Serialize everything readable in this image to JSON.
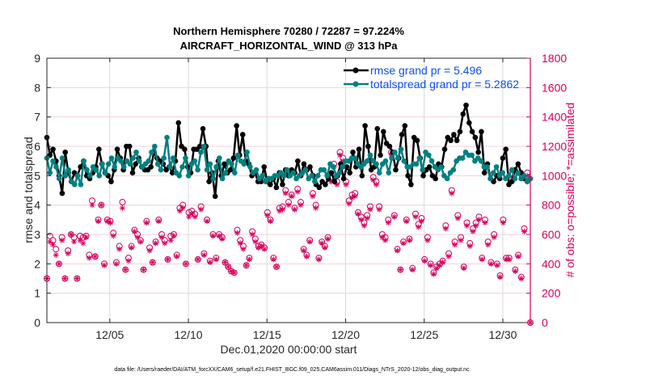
{
  "chart_data": {
    "type": "line",
    "title": "Northern Hemisphere 70280 / 72287 = 97.224%",
    "subtitle": "AIRCRAFT_HORIZONTAL_WIND @ 313 hPa",
    "xlabel": "Dec.01,2020 00:00:00 start",
    "ylabel": "rmse and totalspread",
    "y2label": "# of obs: o=possible; *=assimilated",
    "footnote": "data file: /Users/raeder/DAI/ATM_forcXX/CAM6_setup/f.e21.FHIST_BGC.f09_025.CAM6assim.011/Diags_NTrS_2020-12/obs_diag_output.nc",
    "xlim": [
      1.0,
      31.75
    ],
    "ylim": [
      0,
      9
    ],
    "y2lim": [
      0,
      1800
    ],
    "x_ticks": [
      {
        "value": 5,
        "label": "12/05"
      },
      {
        "value": 10,
        "label": "12/10"
      },
      {
        "value": 15,
        "label": "12/15"
      },
      {
        "value": 20,
        "label": "12/20"
      },
      {
        "value": 25,
        "label": "12/25"
      },
      {
        "value": 30,
        "label": "12/30"
      }
    ],
    "y_ticks": [
      0,
      1,
      2,
      3,
      4,
      5,
      6,
      7,
      8,
      9
    ],
    "y2_ticks": [
      0,
      200,
      400,
      600,
      800,
      1000,
      1200,
      1400,
      1600,
      1800
    ],
    "grid": true,
    "legend": {
      "placement": "top-right",
      "entries": [
        {
          "label": "rmse grand pr = 5.496",
          "color": "#000000"
        },
        {
          "label": "totalspread grand pr = 5.2862",
          "color": "#00807f"
        }
      ]
    },
    "x_start": 1.0,
    "x_step": 0.25,
    "series": [
      {
        "name": "rmse",
        "color": "#000000",
        "axis": "left",
        "values": [
          6.3,
          5.7,
          5.9,
          5.5,
          5.0,
          4.4,
          5.8,
          5.1,
          4.8,
          5.1,
          5.0,
          5.3,
          5.5,
          5.0,
          4.9,
          5.1,
          5.3,
          5.9,
          5.4,
          5.1,
          5.0,
          4.8,
          5.2,
          5.9,
          5.6,
          5.2,
          6.0,
          6.0,
          5.1,
          5.4,
          5.6,
          5.3,
          5.2,
          5.2,
          5.3,
          5.8,
          5.6,
          5.5,
          5.4,
          5.2,
          5.3,
          5.1,
          5.5,
          6.8,
          6.0,
          5.9,
          5.3,
          5.1,
          5.9,
          5.9,
          6.0,
          6.6,
          6.0,
          4.8,
          5.1,
          4.3,
          5.5,
          5.0,
          5.4,
          5.1,
          5.2,
          5.6,
          6.7,
          5.7,
          6.4,
          5.5,
          5.4,
          5.0,
          5.1,
          4.8,
          4.8,
          5.3,
          4.8,
          4.7,
          4.9,
          4.6,
          5.1,
          4.7,
          5.2,
          5.0,
          5.2,
          5.1,
          5.5,
          5.0,
          5.4,
          5.2,
          5.3,
          5.0,
          4.7,
          4.6,
          4.8,
          4.7,
          4.9,
          5.1,
          4.8,
          5.0,
          5.4,
          4.9,
          5.3,
          5.1,
          5.8,
          5.3,
          5.9,
          5.0,
          6.7,
          6.0,
          5.2,
          5.3,
          6.6,
          5.7,
          6.5,
          6.1,
          6.0,
          5.8,
          5.2,
          5.6,
          6.4,
          6.7,
          5.0,
          4.7,
          6.3,
          6.2,
          5.6,
          5.0,
          5.2,
          5.3,
          5.0,
          4.9,
          5.4,
          5.3,
          5.9,
          6.3,
          6.2,
          6.4,
          6.2,
          6.5,
          7.1,
          7.4,
          6.8,
          6.5,
          6.3,
          5.8,
          6.5,
          5.1,
          5.4,
          4.9,
          4.8,
          5.0,
          4.9,
          5.6,
          5.9,
          4.7,
          4.8,
          5.2,
          5.4,
          5.1,
          4.9,
          4.8,
          4.9
        ],
        "marker": "filled-circle"
      },
      {
        "name": "totalspread",
        "color": "#00807f",
        "axis": "left",
        "values": [
          5.6,
          5.1,
          5.5,
          5.3,
          4.9,
          5.6,
          5.0,
          5.2,
          4.8,
          4.7,
          5.0,
          4.7,
          5.5,
          5.2,
          5.0,
          5.3,
          5.2,
          5.0,
          5.4,
          5.1,
          5.4,
          5.6,
          5.3,
          5.6,
          5.5,
          5.3,
          5.5,
          5.4,
          5.6,
          5.8,
          5.5,
          5.3,
          5.4,
          5.5,
          5.8,
          6.0,
          5.4,
          5.2,
          5.6,
          6.3,
          5.3,
          5.6,
          5.1,
          5.0,
          5.3,
          5.6,
          5.0,
          5.4,
          5.5,
          5.2,
          5.8,
          6.0,
          5.2,
          5.4,
          4.9,
          5.3,
          5.6,
          4.9,
          5.1,
          5.5,
          5.4,
          5.1,
          5.7,
          5.5,
          5.4,
          5.8,
          5.3,
          5.1,
          5.2,
          4.9,
          5.0,
          4.8,
          4.9,
          4.9,
          5.0,
          5.0,
          5.1,
          5.0,
          5.2,
          5.0,
          5.1,
          4.9,
          5.0,
          5.1,
          5.2,
          4.9,
          5.0,
          4.8,
          5.0,
          5.2,
          5.2,
          5.0,
          5.4,
          5.3,
          5.0,
          5.1,
          5.3,
          5.5,
          5.5,
          5.6,
          5.6,
          5.4,
          5.3,
          5.4,
          5.5,
          5.7,
          5.5,
          5.4,
          5.1,
          5.4,
          5.5,
          5.1,
          5.6,
          5.8,
          5.6,
          5.9,
          5.5,
          5.3,
          5.3,
          5.4,
          5.4,
          5.6,
          5.2,
          5.8,
          5.7,
          5.5,
          5.3,
          5.2,
          5.3,
          5.0,
          4.9,
          5.1,
          5.2,
          5.5,
          5.6,
          5.6,
          5.8,
          5.7,
          5.7,
          5.5,
          5.6,
          5.5,
          5.3,
          5.3,
          4.9,
          5.1,
          5.3,
          5.0,
          5.1,
          4.9,
          5.0,
          5.2,
          4.9,
          5.1,
          4.9,
          5.0,
          4.8,
          4.9
        ],
        "marker": "filled-circle"
      },
      {
        "name": "obs possible",
        "color": "#d6005c",
        "axis": "right",
        "marker": "open-circle",
        "values": [
          300,
          590,
          560,
          500,
          400,
          580,
          300,
          490,
          600,
          580,
          300,
          590,
          580,
          590,
          460,
          830,
          450,
          700,
          800,
          400,
          700,
          690,
          610,
          410,
          520,
          820,
          360,
          440,
          520,
          630,
          600,
          560,
          360,
          690,
          510,
          410,
          550,
          700,
          600,
          560,
          430,
          590,
          600,
          460,
          780,
          800,
          400,
          750,
          760,
          740,
          430,
          790,
          470,
          700,
          420,
          600,
          440,
          600,
          580,
          410,
          380,
          350,
          340,
          630,
          560,
          520,
          390,
          440,
          620,
          570,
          520,
          530,
          510,
          750,
          700,
          440,
          380,
          780,
          790,
          900,
          820,
          870,
          780,
          910,
          820,
          500,
          460,
          560,
          880,
          800,
          440,
          550,
          520,
          580,
          990,
          1080,
          960,
          1160,
          1120,
          960,
          830,
          870,
          880,
          750,
          720,
          680,
          730,
          790,
          990,
          960,
          790,
          600,
          580,
          700,
          1160,
          730,
          500,
          360,
          550,
          700,
          570,
          370,
          740,
          670,
          710,
          430,
          580,
          400,
          340,
          380,
          400,
          420,
          660,
          470,
          900,
          550,
          730,
          580,
          380,
          680,
          540,
          640,
          680,
          720,
          440,
          700,
          550,
          410,
          600,
          400,
          320,
          700,
          440,
          440,
          1010,
          360,
          460,
          310,
          640,
          1020,
          0
        ],
        "assimilated": [
          300,
          550,
          530,
          460,
          400,
          560,
          300,
          470,
          600,
          550,
          300,
          560,
          540,
          580,
          440,
          800,
          450,
          690,
          800,
          390,
          690,
          680,
          590,
          400,
          500,
          780,
          360,
          420,
          510,
          620,
          580,
          550,
          360,
          680,
          490,
          410,
          540,
          690,
          580,
          540,
          430,
          560,
          590,
          450,
          760,
          780,
          400,
          720,
          740,
          720,
          430,
          770,
          460,
          690,
          410,
          590,
          430,
          590,
          570,
          410,
          380,
          350,
          340,
          610,
          540,
          500,
          390,
          430,
          600,
          550,
          510,
          520,
          500,
          730,
          690,
          430,
          380,
          760,
          770,
          880,
          800,
          860,
          770,
          890,
          800,
          490,
          450,
          550,
          860,
          780,
          430,
          540,
          510,
          570,
          960,
          1060,
          940,
          1140,
          1100,
          940,
          810,
          850,
          860,
          740,
          700,
          660,
          710,
          770,
          970,
          940,
          770,
          580,
          560,
          680,
          1140,
          720,
          490,
          360,
          540,
          690,
          560,
          360,
          720,
          650,
          690,
          420,
          560,
          390,
          330,
          370,
          390,
          410,
          640,
          450,
          880,
          530,
          710,
          560,
          370,
          660,
          520,
          620,
          660,
          700,
          430,
          680,
          530,
          400,
          580,
          390,
          310,
          680,
          430,
          430,
          990,
          350,
          450,
          300,
          620,
          1000,
          0
        ]
      }
    ]
  }
}
